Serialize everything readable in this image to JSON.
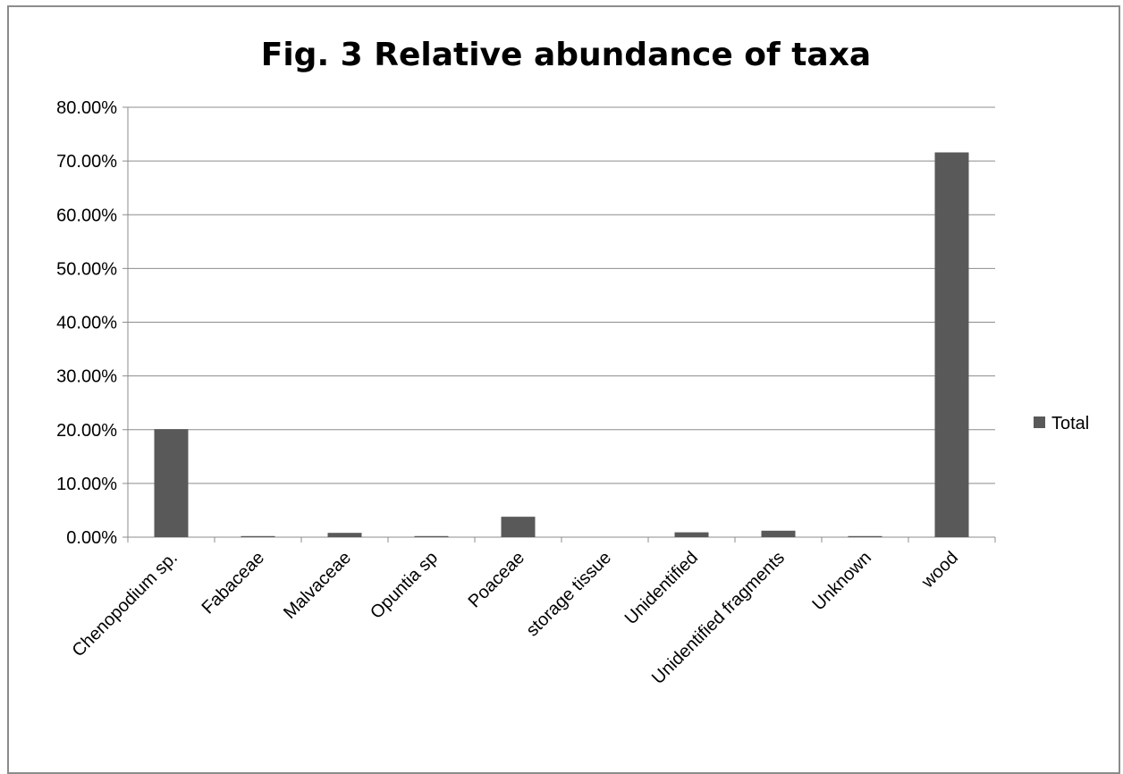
{
  "chart_data": {
    "type": "bar",
    "title": "Fig. 3 Relative abundance of taxa",
    "xlabel": "",
    "ylabel": "",
    "categories": [
      "Chenopodium sp.",
      "Fabaceae",
      "Malvaceae",
      "Opuntia sp",
      "Poaceae",
      "storage tissue",
      "Unidentified",
      "Unidentified fragments",
      "Unknown",
      "wood"
    ],
    "series": [
      {
        "name": "Total",
        "color": "#595959",
        "values": [
          0.201,
          0.002,
          0.008,
          0.002,
          0.038,
          0.0,
          0.009,
          0.012,
          0.002,
          0.716
        ]
      }
    ],
    "ylim": [
      0,
      0.8
    ],
    "yticks": [
      0.0,
      0.1,
      0.2,
      0.3,
      0.4,
      0.5,
      0.6,
      0.7,
      0.8
    ],
    "ytick_labels": [
      "0.00%",
      "10.00%",
      "20.00%",
      "30.00%",
      "40.00%",
      "50.00%",
      "60.00%",
      "70.00%",
      "80.00%"
    ],
    "grid": true,
    "legend_position": "right",
    "colors": {
      "bar": "#595959",
      "grid": "#8c8c8c",
      "axis": "#8c8c8c",
      "frame": "#8c8c8c"
    }
  }
}
